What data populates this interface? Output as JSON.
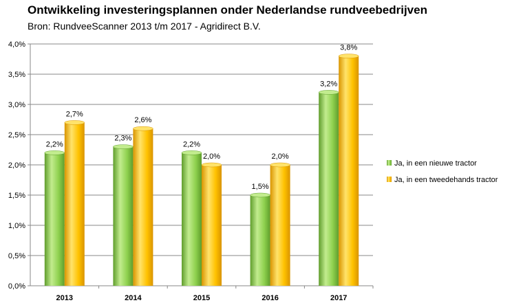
{
  "chart_data": {
    "type": "bar",
    "title": "Ontwikkeling investeringsplannen onder Nederlandse rundveebedrijven",
    "subtitle": "Bron: RundveeScanner 2013 t/m 2017 - Agridirect B.V.",
    "categories": [
      "2013",
      "2014",
      "2015",
      "2016",
      "2017"
    ],
    "series": [
      {
        "name": "Ja, in een nieuwe tractor",
        "values": [
          2.2,
          2.3,
          2.2,
          1.5,
          3.2
        ],
        "labels": [
          "2,2%",
          "2,3%",
          "2,2%",
          "1,5%",
          "3,2%"
        ],
        "color": "#8fd14f",
        "color_light": "#c2ec8e",
        "color_dark": "#5f9d2c"
      },
      {
        "name": "Ja, in een tweedehands tractor",
        "values": [
          2.7,
          2.6,
          2.0,
          2.0,
          3.8
        ],
        "labels": [
          "2,7%",
          "2,6%",
          "2,0%",
          "2,0%",
          "3,8%"
        ],
        "color": "#ffc200",
        "color_light": "#ffe36b",
        "color_dark": "#d99400"
      }
    ],
    "ylim": [
      0,
      4.0
    ],
    "yticks": [
      0,
      0.5,
      1.0,
      1.5,
      2.0,
      2.5,
      3.0,
      3.5,
      4.0
    ],
    "ytick_labels": [
      "0,0%",
      "0,5%",
      "1,0%",
      "1,5%",
      "2,0%",
      "2,5%",
      "3,0%",
      "3,5%",
      "4,0%"
    ],
    "xlabel": "",
    "ylabel": "",
    "grid": true,
    "legend_position": "right"
  }
}
